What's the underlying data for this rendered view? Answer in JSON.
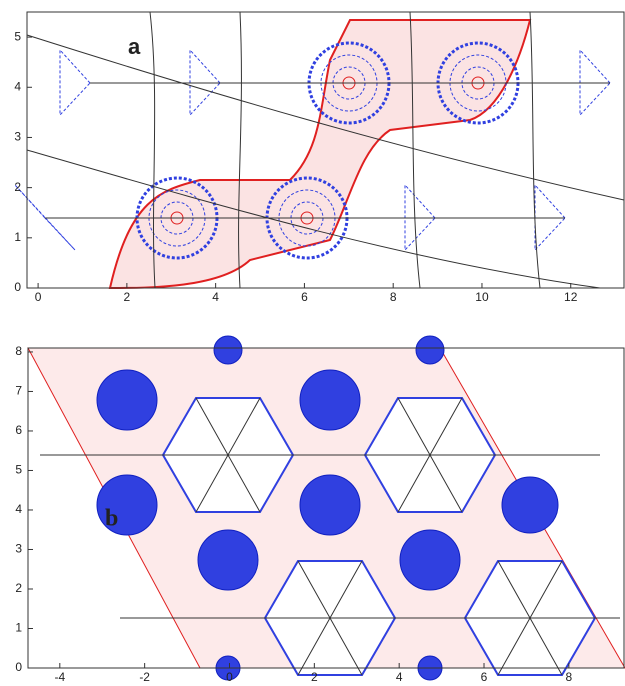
{
  "chart_data": [
    {
      "type": "contour",
      "label": "a",
      "xlim": [
        -0.25,
        13.2
      ],
      "ylim": [
        0,
        5.5
      ],
      "xticks": [
        0,
        2,
        4,
        6,
        8,
        10,
        12
      ],
      "yticks": [
        0,
        1,
        2,
        3,
        4,
        5
      ]
    },
    {
      "type": "contour",
      "label": "b",
      "xlim": [
        -4.75,
        9.3
      ],
      "ylim": [
        0,
        8.1
      ],
      "xticks": [
        -4,
        -2,
        0,
        2,
        4,
        6,
        8
      ],
      "yticks": [
        0,
        1,
        2,
        3,
        4,
        5,
        6,
        7,
        8
      ]
    }
  ]
}
